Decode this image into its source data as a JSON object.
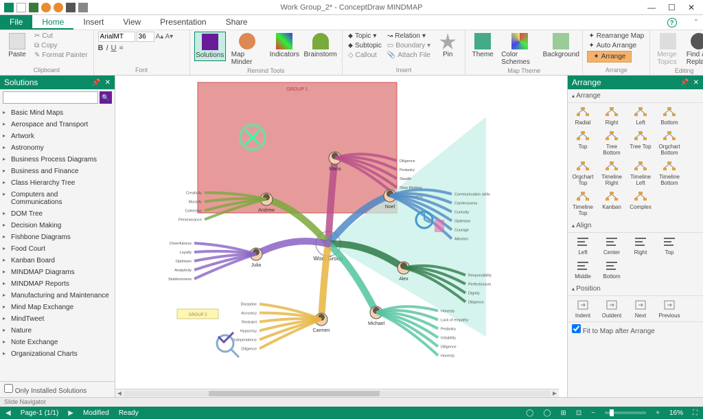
{
  "title": "Work Group_2* - ConceptDraw MINDMAP",
  "menu": {
    "file": "File",
    "tabs": [
      "Home",
      "Insert",
      "View",
      "Presentation",
      "Share"
    ],
    "active": "Home"
  },
  "ribbon": {
    "clipboard": {
      "label": "Clipboard",
      "paste": "Paste",
      "cut": "Cut",
      "copy": "Copy",
      "format_painter": "Format Painter"
    },
    "font": {
      "label": "Font",
      "family": "ArialMT",
      "size": "36"
    },
    "remind": {
      "label": "Remind Tools",
      "solutions": "Solutions",
      "map_minder": "Map Minder",
      "indicators": "Indicators",
      "brainstorm": "Brainstorm"
    },
    "insert": {
      "label": "Insert",
      "topic": "Topic",
      "subtopic": "Subtopic",
      "callout": "Callout",
      "relation": "Relation",
      "boundary": "Boundary",
      "attach": "Attach",
      "file": "File",
      "pin": "Pin"
    },
    "maptheme": {
      "label": "Map Theme",
      "theme": "Theme",
      "color_schemes": "Color Schemes",
      "background": "Background"
    },
    "arrange": {
      "label": "Arrange",
      "rearrange": "Rearrange Map",
      "auto": "Auto Arrange",
      "arrange": "Arrange"
    },
    "editing": {
      "label": "Editing",
      "merge": "Merge Topics",
      "find": "Find & Replace"
    }
  },
  "solutions": {
    "title": "Solutions",
    "items": [
      "Basic Mind Maps",
      "Aerospace and Transport",
      "Artwork",
      "Astronomy",
      "Business Process Diagrams",
      "Business and Finance",
      "Class Hierarchy Tree",
      "Computers and Communications",
      "DOM Tree",
      "Decision Making",
      "Fishbone Diagrams",
      "Food Court",
      "Kanban Board",
      "MINDMAP  Diagrams",
      "MINDMAP Reports",
      "Manufacturing and Maintenance",
      "Mind Map Exchange",
      "MindTweet",
      "Nature",
      "Note Exchange",
      "Organizational Charts"
    ],
    "only_installed": "Only Installed Solutions"
  },
  "arrange_panel": {
    "title": "Arrange",
    "section_arrange": "Arrange",
    "arrange_items": [
      "Radial",
      "Right",
      "Left",
      "Bottom",
      "Top",
      "Tree Bottom",
      "Tree Top",
      "Orgchart Bottom",
      "Orgchart Top",
      "Timeline Right",
      "Timeline Left",
      "Timeline Bottom",
      "Timeline Top",
      "Kanban",
      "Complex"
    ],
    "section_align": "Align",
    "align_items": [
      "Left",
      "Center",
      "Right",
      "Top",
      "Middle",
      "Bottom"
    ],
    "section_position": "Position",
    "position_items": [
      "Indent",
      "Outdent",
      "Next",
      "Previous"
    ],
    "fit": "Fit to Map after Arrange"
  },
  "mindmap": {
    "center": "Work Group",
    "group1_label": "GROUP 1",
    "group2_label": "GROUP 2",
    "group1_bg": "#e79a9a",
    "group2_bg": "#fff6b0",
    "teal_bg": "#c2efe6",
    "people": {
      "andrew": {
        "name": "Andrew",
        "traits": [
          "Creativity",
          "Morality",
          "Calmness",
          "Perseverance"
        ]
      },
      "maria": {
        "name": "Maria",
        "traits": [
          "Diligence",
          "Pedantry",
          "Stealth",
          "Slow thinking",
          "Perseverance"
        ]
      },
      "noel": {
        "name": "Noel",
        "traits": [
          "Communication skills",
          "Carelessness",
          "Curiosity",
          "Optimism",
          "Courage",
          "Altruism"
        ]
      },
      "alex": {
        "name": "Alex",
        "traits": [
          "Responsibility",
          "Perfectionism",
          "Dignity",
          "Diligence"
        ]
      },
      "michael": {
        "name": "Michael",
        "traits": [
          "Honesty",
          "Lack of empathy",
          "Pedantry",
          "Irritability",
          "Diligence",
          "Honesty"
        ]
      },
      "carmen": {
        "name": "Carmen",
        "traits": [
          "Discipline",
          "Accuracy",
          "Restraint",
          "Hypocrisy",
          "Independence",
          "Diligence"
        ]
      },
      "julia": {
        "name": "Julia",
        "traits": [
          "Cheerfulness",
          "Loyalty",
          "Optimism",
          "Analyticity",
          "Stubbornness"
        ]
      }
    },
    "colors": {
      "andrew": "#7aa93c",
      "maria": "#b74f8a",
      "noel": "#4f8ac6",
      "alex": "#2f7a47",
      "michael": "#52c3a0",
      "carmen": "#e6b43f",
      "julia": "#8a63c4"
    }
  },
  "slide_nav": "Slide Navigator",
  "status": {
    "page": "Page-1 (1/1)",
    "modified": "Modified",
    "ready": "Ready",
    "zoom": "16%"
  }
}
